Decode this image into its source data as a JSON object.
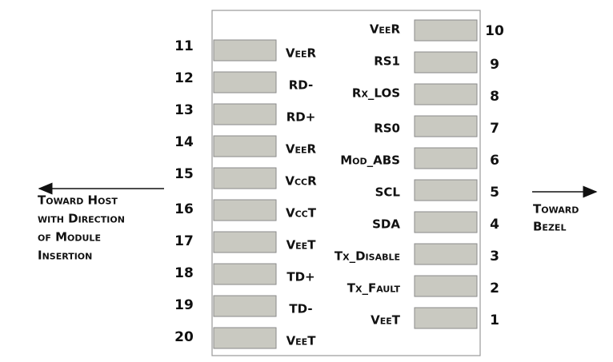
{
  "left_pins": [
    {
      "number": "11",
      "label": "VeeR"
    },
    {
      "number": "12",
      "label": "RD-"
    },
    {
      "number": "13",
      "label": "RD+"
    },
    {
      "number": "14",
      "label": "VeeR"
    },
    {
      "number": "15",
      "label": "VccR"
    },
    {
      "number": "16",
      "label": "VccT"
    },
    {
      "number": "17",
      "label": "VeeT"
    },
    {
      "number": "18",
      "label": "TD+"
    },
    {
      "number": "19",
      "label": "TD-"
    },
    {
      "number": "20",
      "label": "VeeT"
    }
  ],
  "right_pins": [
    {
      "number": "10",
      "label": "VeeR"
    },
    {
      "number": "9",
      "label": "RS1"
    },
    {
      "number": "8",
      "label": "Rx_LOS"
    },
    {
      "number": "7",
      "label": "RS0"
    },
    {
      "number": "6",
      "label": "Mod_ABS"
    },
    {
      "number": "5",
      "label": "SCL"
    },
    {
      "number": "4",
      "label": "SDA"
    },
    {
      "number": "3",
      "label": "Tx_Disable"
    },
    {
      "number": "2",
      "label": "Tx_Fault"
    },
    {
      "number": "1",
      "label": "VeeT"
    }
  ],
  "host_direction": {
    "lines": [
      "Toward Host",
      "with Direction",
      "of Module",
      "Insertion"
    ]
  },
  "bezel_direction": {
    "lines": [
      "Toward",
      "Bezel"
    ]
  }
}
